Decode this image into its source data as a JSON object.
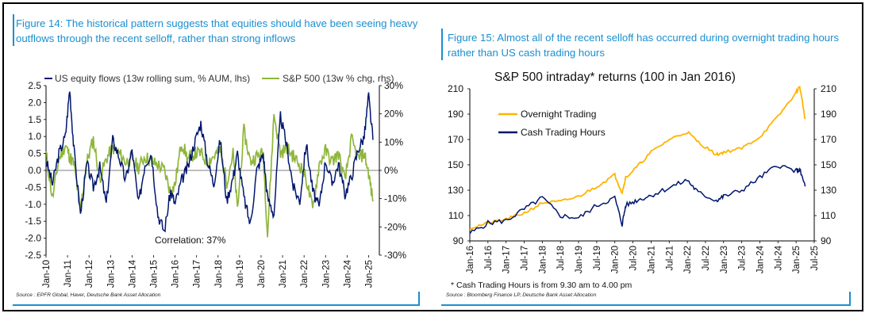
{
  "colors": {
    "accent": "#1a8fd0",
    "navy": "#00166f",
    "green": "#8fb63c",
    "gold": "#ffb400"
  },
  "left": {
    "title": "Figure 14: The historical pattern suggests that equities should have been seeing heavy outflows through the recent selloff, rather than strong inflows",
    "source": "Source : EPFR Global, Haver, Deutsche Bank Asset Allocation",
    "annotation": "Correlation: 37%"
  },
  "right": {
    "title": "Figure 15: Almost all of the recent selloff has occurred during overnight trading hours rather than US cash trading hours",
    "source": "Source : Bloomberg Finance LP, Deutsche Bank Asset Allocation",
    "footnote": "* Cash Trading Hours is from 9.30 am to 4.00 pm"
  },
  "chart_data": [
    {
      "type": "line",
      "title": "",
      "legend_position": "top",
      "x_ticks": [
        "Jan-10",
        "Jan-11",
        "Jan-12",
        "Jan-13",
        "Jan-14",
        "Jan-15",
        "Jan-16",
        "Jan-17",
        "Jan-18",
        "Jan-19",
        "Jan-20",
        "Jan-21",
        "Jan-22",
        "Jan-23",
        "Jan-24",
        "Jan-25"
      ],
      "y_left_ticks": [
        "-2.5",
        "-2.0",
        "-1.5",
        "-1.0",
        "-0.5",
        "0.0",
        "0.5",
        "1.0",
        "1.5",
        "2.0",
        "2.5"
      ],
      "y_right_ticks": [
        "-30%",
        "-20%",
        "-10%",
        "0%",
        "10%",
        "20%",
        "30%"
      ],
      "ylim_left": [
        -2.5,
        2.5
      ],
      "ylim_right": [
        -30,
        30
      ],
      "series": [
        {
          "name": "US equity flows (13w rolling sum, % AUM, lhs)",
          "axis": "left",
          "x": [
            2010.0,
            2010.3,
            2010.6,
            2010.9,
            2011.1,
            2011.3,
            2011.6,
            2011.9,
            2012.2,
            2012.5,
            2012.8,
            2013.1,
            2013.4,
            2013.7,
            2014.0,
            2014.3,
            2014.6,
            2014.9,
            2015.2,
            2015.5,
            2015.8,
            2016.0,
            2016.3,
            2016.6,
            2016.9,
            2017.2,
            2017.5,
            2017.8,
            2018.1,
            2018.4,
            2018.7,
            2018.9,
            2019.2,
            2019.5,
            2019.8,
            2020.1,
            2020.3,
            2020.6,
            2020.9,
            2021.2,
            2021.5,
            2021.8,
            2022.1,
            2022.4,
            2022.7,
            2023.0,
            2023.3,
            2023.6,
            2023.9,
            2024.2,
            2024.5,
            2024.8,
            2025.0,
            2025.2
          ],
          "values": [
            0.3,
            -0.4,
            0.5,
            1.0,
            2.4,
            0.6,
            -1.3,
            0.2,
            -0.5,
            0.1,
            -1.0,
            0.9,
            0.4,
            -0.3,
            0.6,
            -1.0,
            0.2,
            0.5,
            -1.3,
            -1.8,
            -0.6,
            -1.0,
            -0.3,
            0.1,
            0.8,
            1.4,
            0.3,
            -0.4,
            0.9,
            -0.9,
            -0.2,
            0.5,
            -0.8,
            -1.6,
            0.0,
            0.5,
            -0.8,
            -1.3,
            1.6,
            0.7,
            -0.5,
            -0.9,
            0.8,
            -0.6,
            -1.1,
            0.3,
            -0.4,
            0.2,
            -0.7,
            -0.2,
            0.6,
            1.0,
            2.2,
            0.9
          ]
        },
        {
          "name": "S&P 500 (13w % chg, rhs)",
          "axis": "right",
          "x": [
            2010.0,
            2010.3,
            2010.6,
            2010.9,
            2011.1,
            2011.3,
            2011.6,
            2011.9,
            2012.2,
            2012.5,
            2012.8,
            2013.1,
            2013.4,
            2013.7,
            2014.0,
            2014.3,
            2014.6,
            2014.9,
            2015.2,
            2015.5,
            2015.8,
            2016.0,
            2016.3,
            2016.6,
            2016.9,
            2017.2,
            2017.5,
            2017.8,
            2018.1,
            2018.4,
            2018.7,
            2018.9,
            2019.2,
            2019.5,
            2019.8,
            2020.1,
            2020.3,
            2020.6,
            2020.9,
            2021.2,
            2021.5,
            2021.8,
            2022.1,
            2022.4,
            2022.7,
            2023.0,
            2023.3,
            2023.6,
            2023.9,
            2024.2,
            2024.5,
            2024.8,
            2025.0,
            2025.2
          ],
          "values": [
            6,
            -10,
            4,
            9,
            5,
            2,
            -14,
            3,
            11,
            -3,
            4,
            8,
            6,
            3,
            4,
            1,
            5,
            3,
            2,
            0,
            -8,
            -5,
            10,
            4,
            6,
            6,
            3,
            5,
            7,
            -4,
            6,
            -14,
            14,
            3,
            5,
            6,
            -23,
            20,
            6,
            8,
            5,
            2,
            -3,
            -14,
            2,
            7,
            3,
            6,
            -4,
            11,
            4,
            6,
            -1,
            -11
          ]
        }
      ]
    },
    {
      "type": "line",
      "title": "S&P 500 intraday* returns (100 in Jan 2016)",
      "legend_position": "top-left",
      "x_ticks": [
        "Jan-16",
        "Jul-16",
        "Jan-17",
        "Jul-17",
        "Jan-18",
        "Jul-18",
        "Jan-19",
        "Jul-19",
        "Jan-20",
        "Jul-20",
        "Jan-21",
        "Jul-21",
        "Jan-22",
        "Jul-22",
        "Jan-23",
        "Jul-23",
        "Jan-24",
        "Jul-24",
        "Jan-25",
        "Jul-25"
      ],
      "y_ticks": [
        "90",
        "110",
        "130",
        "150",
        "170",
        "190",
        "210"
      ],
      "ylim": [
        90,
        210
      ],
      "series": [
        {
          "name": "Overnight Trading",
          "x": [
            2016.0,
            2016.5,
            2017.0,
            2017.5,
            2018.0,
            2018.5,
            2019.0,
            2019.5,
            2020.0,
            2020.2,
            2020.3,
            2020.6,
            2021.0,
            2021.5,
            2022.0,
            2022.3,
            2022.8,
            2023.0,
            2023.5,
            2024.0,
            2024.5,
            2025.0,
            2025.1,
            2025.25
          ],
          "values": [
            100,
            104,
            107,
            112,
            120,
            121,
            125,
            133,
            142,
            128,
            140,
            148,
            160,
            170,
            176,
            168,
            158,
            160,
            163,
            172,
            188,
            207,
            212,
            186
          ]
        },
        {
          "name": "Cash Trading Hours",
          "x": [
            2016.0,
            2016.5,
            2017.0,
            2017.5,
            2018.0,
            2018.5,
            2019.0,
            2019.5,
            2020.0,
            2020.2,
            2020.3,
            2020.6,
            2021.0,
            2021.5,
            2022.0,
            2022.3,
            2022.8,
            2023.0,
            2023.5,
            2024.0,
            2024.5,
            2025.0,
            2025.1,
            2025.25
          ],
          "values": [
            96,
            104,
            106,
            115,
            124,
            110,
            108,
            118,
            124,
            103,
            118,
            122,
            126,
            132,
            138,
            128,
            122,
            125,
            130,
            140,
            150,
            145,
            146,
            133
          ]
        }
      ]
    }
  ]
}
